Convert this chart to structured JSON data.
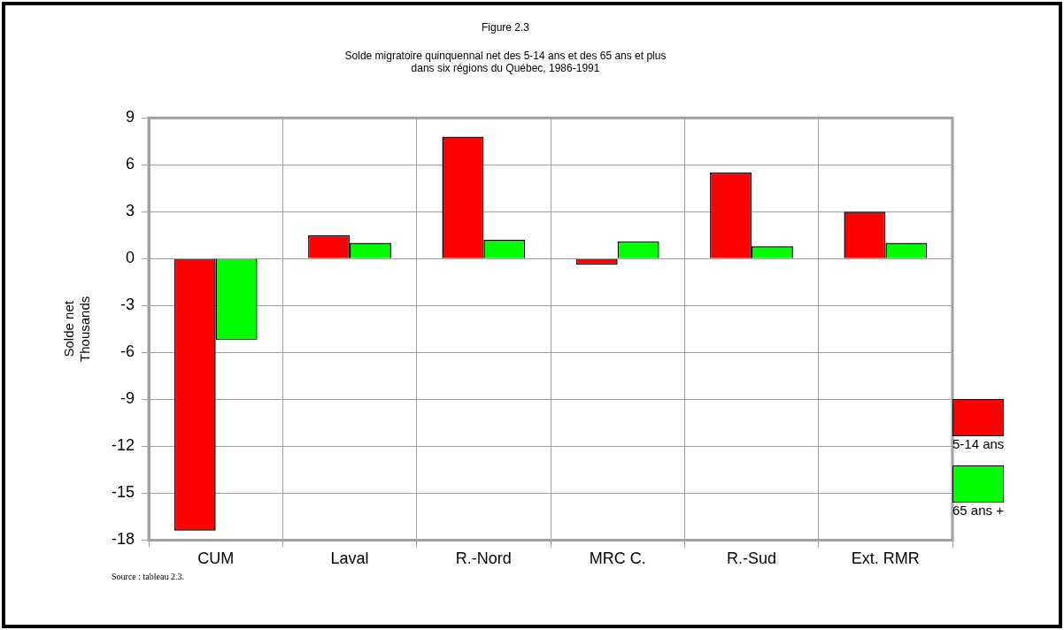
{
  "chart_data": {
    "type": "bar",
    "title": "Figure 2.3",
    "subtitle": "Solde migratoire quinquennal net des 5-14 ans et des 65 ans et plus\ndans six régions du Québec, 1986-1991",
    "ylabel": "Solde net\nThousands",
    "categories": [
      "CUM",
      "Laval",
      "R.-Nord",
      "MRC C.",
      "R.-Sud",
      "Ext. RMR"
    ],
    "series": [
      {
        "name": "5-14 ans",
        "color": "#ff0000",
        "values": [
          -17.4,
          1.5,
          7.8,
          -0.4,
          5.5,
          3.0
        ]
      },
      {
        "name": "65 ans +",
        "color": "#00ff00",
        "values": [
          -5.2,
          1.0,
          1.2,
          1.1,
          0.8,
          1.0
        ]
      }
    ],
    "ylim": [
      -18,
      9
    ],
    "yticks": [
      -18,
      -15,
      -12,
      -9,
      -6,
      -3,
      0,
      3,
      6,
      9
    ],
    "grid": true,
    "legend": "right",
    "annotations": [
      "Source : tableau 2.3."
    ]
  }
}
